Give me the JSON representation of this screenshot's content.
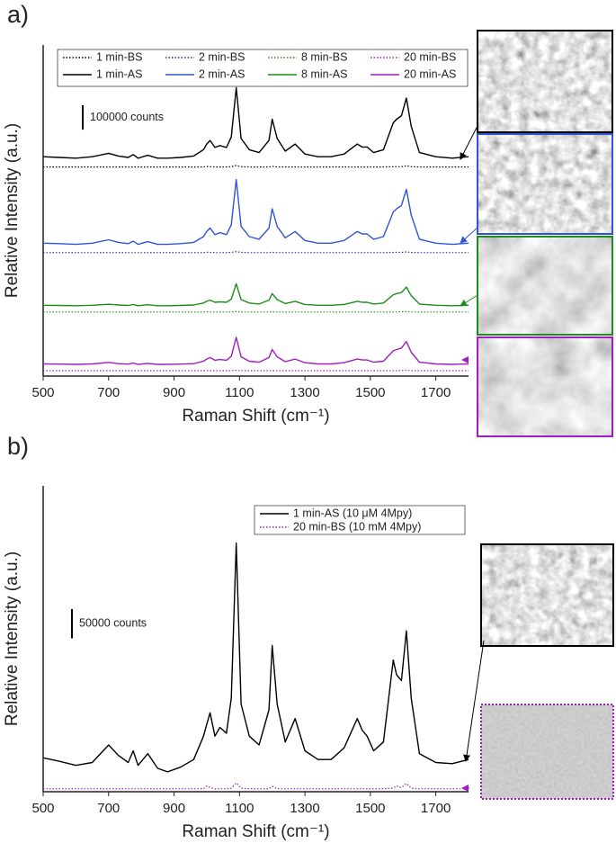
{
  "chart_data": [
    {
      "type": "line",
      "panel_label": "a)",
      "xlabel": "Raman Shift (cm⁻¹)",
      "ylabel": "Relative Intensity (a.u.)",
      "xlim": [
        500,
        1800
      ],
      "xticks": [
        500,
        700,
        900,
        1100,
        1300,
        1500,
        1700
      ],
      "ylim": [
        0,
        1360000
      ],
      "legend": "top",
      "scale_bar": {
        "value": 100000,
        "label": "100000 counts"
      },
      "x": [
        500,
        550,
        600,
        650,
        700,
        730,
        760,
        775,
        790,
        820,
        850,
        880,
        920,
        960,
        990,
        1000,
        1010,
        1025,
        1040,
        1060,
        1075,
        1090,
        1105,
        1130,
        1160,
        1190,
        1200,
        1215,
        1240,
        1270,
        1300,
        1340,
        1380,
        1420,
        1460,
        1475,
        1490,
        1510,
        1540,
        1570,
        1580,
        1595,
        1610,
        1625,
        1650,
        1700,
        1750,
        1800
      ],
      "series": [
        {
          "name": "1 min-BS",
          "color": "#000000",
          "style": "dotted",
          "values": [
            859000,
            859000,
            859000,
            859000,
            859000,
            859000,
            859000,
            859000,
            859000,
            859000,
            859000,
            859000,
            859000,
            859000,
            859000,
            861000,
            860000,
            859000,
            859000,
            859000,
            860000,
            865000,
            860000,
            859000,
            859000,
            859000,
            862000,
            859000,
            859000,
            859000,
            859000,
            859000,
            859000,
            859000,
            859000,
            859000,
            859000,
            859000,
            859000,
            860000,
            860000,
            860000,
            864000,
            860000,
            859000,
            859000,
            859000,
            859000
          ]
        },
        {
          "name": "2 min-BS",
          "color": "#1c2fa8",
          "style": "dotted",
          "values": [
            507000,
            507000,
            507000,
            507000,
            507000,
            507000,
            507000,
            507000,
            507000,
            507000,
            507000,
            507000,
            507000,
            507000,
            507000,
            509000,
            508000,
            507000,
            507000,
            507000,
            508000,
            511000,
            508000,
            507000,
            507000,
            507000,
            509000,
            507000,
            507000,
            507000,
            507000,
            507000,
            507000,
            507000,
            507000,
            507000,
            507000,
            507000,
            507000,
            508000,
            508000,
            508000,
            510000,
            508000,
            507000,
            507000,
            507000,
            507000
          ]
        },
        {
          "name": "8 min-BS",
          "color": "#1e8c1e",
          "style": "dotted",
          "values": [
            263000,
            263000,
            263000,
            263000,
            263000,
            263000,
            263000,
            263000,
            263000,
            263000,
            263000,
            263000,
            263000,
            263000,
            263000,
            264000,
            263000,
            263000,
            263000,
            263000,
            263000,
            265000,
            263000,
            263000,
            263000,
            263000,
            264000,
            263000,
            263000,
            263000,
            263000,
            263000,
            263000,
            263000,
            263000,
            263000,
            263000,
            263000,
            263000,
            263000,
            263000,
            264000,
            265000,
            263000,
            263000,
            263000,
            263000,
            263000
          ]
        },
        {
          "name": "20 min-BS",
          "color": "#a21cc2",
          "style": "dotted",
          "values": [
            22000,
            22000,
            22000,
            22000,
            22000,
            22000,
            22000,
            22000,
            22000,
            22000,
            22000,
            22000,
            22000,
            22000,
            22000,
            23000,
            22000,
            22000,
            22000,
            22000,
            22000,
            24000,
            22000,
            22000,
            22000,
            22000,
            23000,
            22000,
            22000,
            22000,
            22000,
            22000,
            22000,
            22000,
            22000,
            22000,
            22000,
            22000,
            22000,
            22000,
            22000,
            23000,
            24000,
            22000,
            22000,
            22000,
            22000,
            22000
          ]
        },
        {
          "name": "1 min-AS",
          "color": "#000000",
          "style": "solid",
          "values": [
            901000,
            898000,
            895000,
            901000,
            915000,
            904000,
            898000,
            910000,
            895000,
            907000,
            895000,
            895000,
            898000,
            904000,
            930000,
            953000,
            968000,
            939000,
            947000,
            939000,
            982000,
            1185000,
            976000,
            930000,
            918000,
            968000,
            1055000,
            976000,
            924000,
            953000,
            912000,
            901000,
            901000,
            912000,
            953000,
            941000,
            941000,
            918000,
            930000,
            1040000,
            1055000,
            1069000,
            1142000,
            1026000,
            918000,
            901000,
            895000,
            901000
          ]
        },
        {
          "name": "2 min-AS",
          "color": "#2f55d4",
          "style": "solid",
          "values": [
            546000,
            544000,
            541000,
            546000,
            560000,
            549000,
            544000,
            554000,
            541000,
            552000,
            541000,
            541000,
            544000,
            549000,
            573000,
            594000,
            608000,
            581000,
            589000,
            581000,
            621000,
            807000,
            615000,
            573000,
            562000,
            608000,
            687000,
            615000,
            568000,
            594000,
            557000,
            546000,
            546000,
            557000,
            594000,
            584000,
            584000,
            562000,
            573000,
            674000,
            687000,
            701000,
            767000,
            661000,
            562000,
            546000,
            541000,
            546000
          ]
        },
        {
          "name": "8 min-AS",
          "color": "#1e8c1e",
          "style": "solid",
          "values": [
            291000,
            290000,
            289000,
            291000,
            295000,
            292000,
            290000,
            294000,
            289000,
            293000,
            289000,
            289000,
            290000,
            292000,
            300000,
            307000,
            312000,
            303000,
            305000,
            303000,
            316000,
            379000,
            314000,
            300000,
            296000,
            312000,
            339000,
            314000,
            298000,
            307000,
            294000,
            291000,
            291000,
            294000,
            307000,
            303000,
            303000,
            296000,
            300000,
            334000,
            339000,
            343000,
            366000,
            330000,
            296000,
            291000,
            289000,
            291000
          ]
        },
        {
          "name": "20 min-AS",
          "color": "#a21cc2",
          "style": "solid",
          "values": [
            50000,
            49000,
            48000,
            50000,
            56000,
            51000,
            49000,
            54000,
            48000,
            52000,
            48000,
            48000,
            49000,
            51000,
            61000,
            70000,
            76000,
            65000,
            68000,
            65000,
            81000,
            159000,
            79000,
            61000,
            57000,
            76000,
            109000,
            79000,
            59000,
            70000,
            55000,
            50000,
            50000,
            55000,
            70000,
            66000,
            66000,
            57000,
            61000,
            104000,
            109000,
            115000,
            142000,
            98000,
            57000,
            50000,
            48000,
            50000
          ]
        }
      ]
    },
    {
      "type": "line",
      "panel_label": "b)",
      "xlabel": "Raman Shift (cm⁻¹)",
      "ylabel": "Relative Intensity (a.u.)",
      "xlim": [
        500,
        1800
      ],
      "xticks": [
        500,
        700,
        900,
        1100,
        1300,
        1500,
        1700
      ],
      "ylim": [
        0,
        523000
      ],
      "legend": "upper right",
      "scale_bar": {
        "value": 50000,
        "label": "50000 counts"
      },
      "x": [
        500,
        550,
        600,
        650,
        700,
        730,
        760,
        775,
        790,
        820,
        850,
        880,
        920,
        960,
        990,
        1000,
        1010,
        1025,
        1040,
        1060,
        1075,
        1090,
        1105,
        1130,
        1160,
        1190,
        1200,
        1215,
        1240,
        1270,
        1300,
        1340,
        1380,
        1420,
        1460,
        1475,
        1490,
        1510,
        1540,
        1570,
        1580,
        1595,
        1610,
        1625,
        1650,
        1700,
        1750,
        1800
      ],
      "series": [
        {
          "name": "1 min-AS (10 μM 4Mpy)",
          "color": "#000000",
          "style": "solid",
          "values": [
            58000,
            52000,
            45000,
            50000,
            80000,
            62000,
            50000,
            70000,
            45000,
            65000,
            40000,
            34000,
            42000,
            55000,
            95000,
            115000,
            135000,
            95000,
            110000,
            100000,
            160000,
            425000,
            150000,
            95000,
            80000,
            140000,
            250000,
            150000,
            85000,
            125000,
            70000,
            55000,
            55000,
            75000,
            125000,
            105000,
            95000,
            70000,
            85000,
            225000,
            200000,
            190000,
            275000,
            160000,
            65000,
            50000,
            48000,
            55000
          ]
        },
        {
          "name": "20 min-BS (10 mM 4Mpy)",
          "color": "#a21cc2",
          "style": "dotted",
          "values": [
            5000,
            5000,
            5000,
            5000,
            5000,
            5000,
            5000,
            5000,
            5000,
            5000,
            5000,
            5000,
            5000,
            5000,
            5000,
            10000,
            7000,
            5000,
            5000,
            5000,
            6000,
            15000,
            6000,
            5000,
            5000,
            5000,
            9000,
            5000,
            5000,
            5000,
            5000,
            5000,
            5000,
            5000,
            5000,
            5000,
            5000,
            5000,
            5000,
            6000,
            10000,
            7000,
            14000,
            6000,
            5000,
            5000,
            5000,
            5000
          ]
        }
      ]
    }
  ]
}
